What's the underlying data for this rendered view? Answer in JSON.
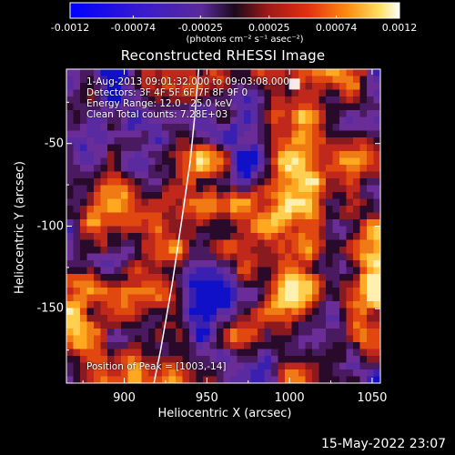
{
  "chart_data": {
    "type": "heatmap",
    "title": "Reconstructed RHESSI Image",
    "xlabel": "Heliocentric X (arcsec)",
    "ylabel": "Heliocentric Y (arcsec)",
    "xlim": [
      865,
      1055
    ],
    "ylim": [
      -195,
      -5
    ],
    "xticks": [
      "900",
      "950",
      "1000",
      "1050"
    ],
    "xtick_values": [
      900,
      950,
      1000,
      1050
    ],
    "yticks": [
      "-50",
      "-100",
      "-150"
    ],
    "ytick_values": [
      -50,
      -100,
      -150
    ],
    "colorbar": {
      "colormap": "blue-purple-red-orange-yellow-white",
      "range": [
        -0.0012,
        0.0012
      ],
      "tick_labels": [
        "-0.0012",
        "-0.00074",
        "-0.00025",
        "0.00025",
        "0.00074",
        "0.0012"
      ],
      "tick_values": [
        -0.0012,
        -0.00074,
        -0.00025,
        0.00025,
        0.00074,
        0.0012
      ],
      "unit_label": "(photons cm⁻² s⁻¹ asec⁻²)"
    },
    "info_lines": [
      "1-Aug-2013 09:01:32.000 to 09:03:08.000",
      "Detectors: 3F 4F 5F 6F 7F 8F 9F 0",
      "Energy Range: 12.0 - 25.0 keV",
      "Clean    Total counts: 7.28E+03"
    ],
    "peak_label": "Position of Peak = [1003,-14]",
    "peak_position": [
      1003,
      -14
    ],
    "limb_curve": [
      [
        945,
        -5
      ],
      [
        943,
        -30
      ],
      [
        940,
        -60
      ],
      [
        935,
        -95
      ],
      [
        929,
        -135
      ],
      [
        922,
        -175
      ],
      [
        918,
        -195
      ]
    ],
    "grid": false,
    "legend": "none"
  },
  "footer": {
    "timestamp": "15-May-2022 23:07"
  }
}
